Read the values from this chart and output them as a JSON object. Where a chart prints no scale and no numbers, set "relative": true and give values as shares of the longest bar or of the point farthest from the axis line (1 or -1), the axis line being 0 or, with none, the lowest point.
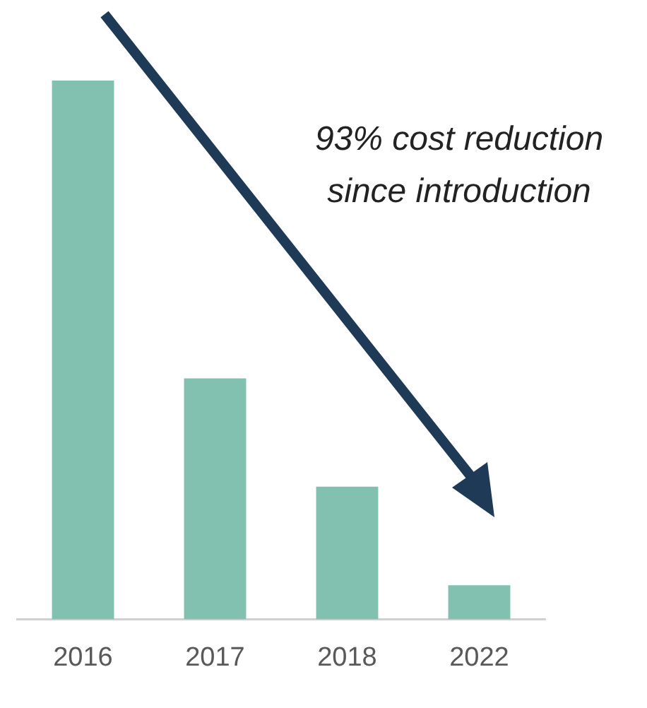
{
  "chart_data": {
    "type": "bar",
    "relative": true,
    "categories": [
      "2016",
      "2017",
      "2018",
      "2022"
    ],
    "values": [
      1,
      0.447,
      0.246,
      0.063
    ],
    "color": "#82c0b0",
    "annotations": [
      "93% cost reduction since introduction"
    ]
  }
}
